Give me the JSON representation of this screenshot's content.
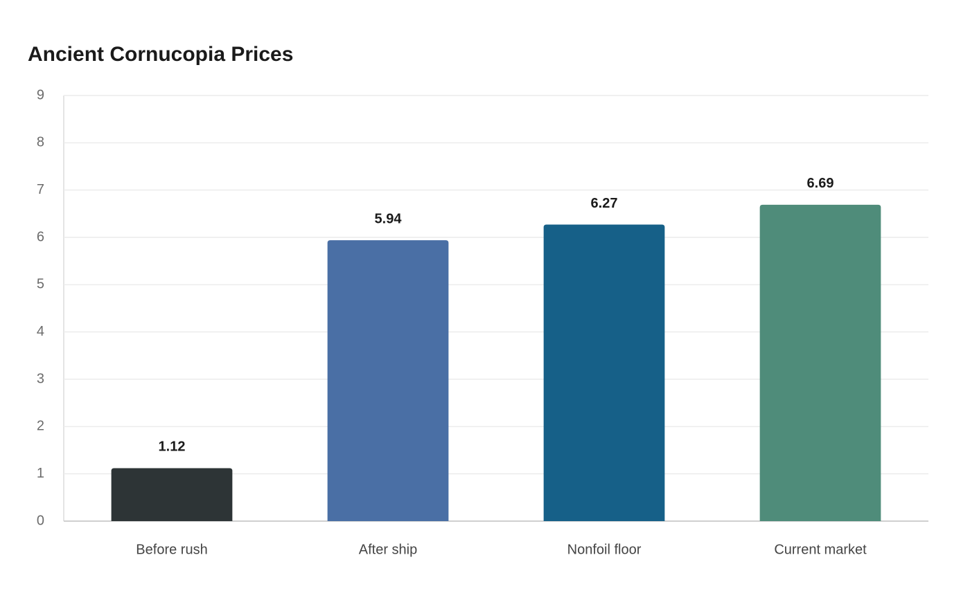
{
  "chart_data": {
    "type": "bar",
    "title": "Ancient Cornucopia Prices",
    "categories": [
      "Before rush",
      "After ship",
      "Nonfoil floor",
      "Current market"
    ],
    "values": [
      1.12,
      5.94,
      6.27,
      6.69
    ],
    "colors": [
      "#2d3436",
      "#4a6fa5",
      "#166088",
      "#4f8c7a"
    ],
    "ylim": [
      0,
      9
    ],
    "yticks": [
      0,
      1,
      2,
      3,
      4,
      5,
      6,
      7,
      8,
      9
    ],
    "grid": true
  }
}
